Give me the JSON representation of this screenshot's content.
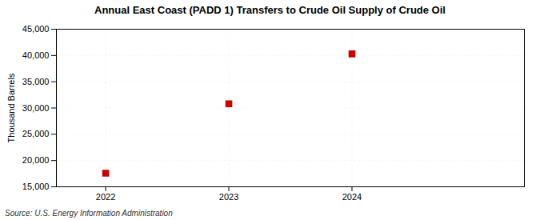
{
  "chart_data": {
    "type": "scatter",
    "title": "Annual East Coast (PADD 1) Transfers to Crude Oil Supply of Crude Oil",
    "ylabel": "Thousand Barrels",
    "source": "Source: U.S. Energy Information Administration",
    "x": [
      2022,
      2023,
      2024
    ],
    "values": [
      17600,
      30800,
      40300
    ],
    "color": "#cc0000",
    "marker": "square",
    "xlim": [
      2021.6,
      2025.4
    ],
    "xticks": [
      2022,
      2023,
      2024
    ],
    "ylim": [
      15000,
      45000
    ],
    "yticks": [
      {
        "value": 15000,
        "label": "15,000"
      },
      {
        "value": 20000,
        "label": "20,000"
      },
      {
        "value": 25000,
        "label": "25,000"
      },
      {
        "value": 30000,
        "label": "30,000"
      },
      {
        "value": 35000,
        "label": "35,000"
      },
      {
        "value": 40000,
        "label": "40,000"
      },
      {
        "value": 45000,
        "label": "45,000"
      }
    ],
    "grid": true
  }
}
